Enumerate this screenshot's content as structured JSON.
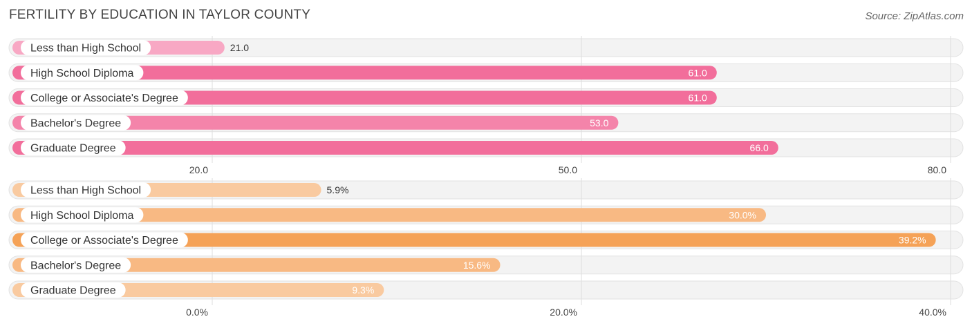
{
  "title": "FERTILITY BY EDUCATION IN TAYLOR COUNTY",
  "source": "Source: ZipAtlas.com",
  "chart_data": [
    {
      "type": "bar",
      "orientation": "horizontal",
      "categories": [
        "Less than High School",
        "High School Diploma",
        "College or Associate's Degree",
        "Bachelor's Degree",
        "Graduate Degree"
      ],
      "values": [
        21.0,
        61.0,
        61.0,
        53.0,
        66.0
      ],
      "value_labels": [
        "21.0",
        "61.0",
        "61.0",
        "53.0",
        "66.0"
      ],
      "xlim": [
        20.0,
        80.0
      ],
      "ticks": [
        20.0,
        50.0,
        80.0
      ],
      "tick_labels": [
        "20.0",
        "50.0",
        "80.0"
      ],
      "colors": [
        "#f8a8c4",
        "#f26e9b",
        "#f26e9b",
        "#f484aa",
        "#f26e9b"
      ],
      "grid": true
    },
    {
      "type": "bar",
      "orientation": "horizontal",
      "categories": [
        "Less than High School",
        "High School Diploma",
        "College or Associate's Degree",
        "Bachelor's Degree",
        "Graduate Degree"
      ],
      "values": [
        5.9,
        30.0,
        39.2,
        15.6,
        9.3
      ],
      "value_labels": [
        "5.9%",
        "30.0%",
        "39.2%",
        "15.6%",
        "9.3%"
      ],
      "xlim": [
        0.0,
        40.0
      ],
      "ticks": [
        0.0,
        20.0,
        40.0
      ],
      "tick_labels": [
        "0.0%",
        "20.0%",
        "40.0%"
      ],
      "colors": [
        "#f9caa0",
        "#f8b983",
        "#f5a257",
        "#f8b983",
        "#f9caa0"
      ],
      "grid": true
    }
  ]
}
